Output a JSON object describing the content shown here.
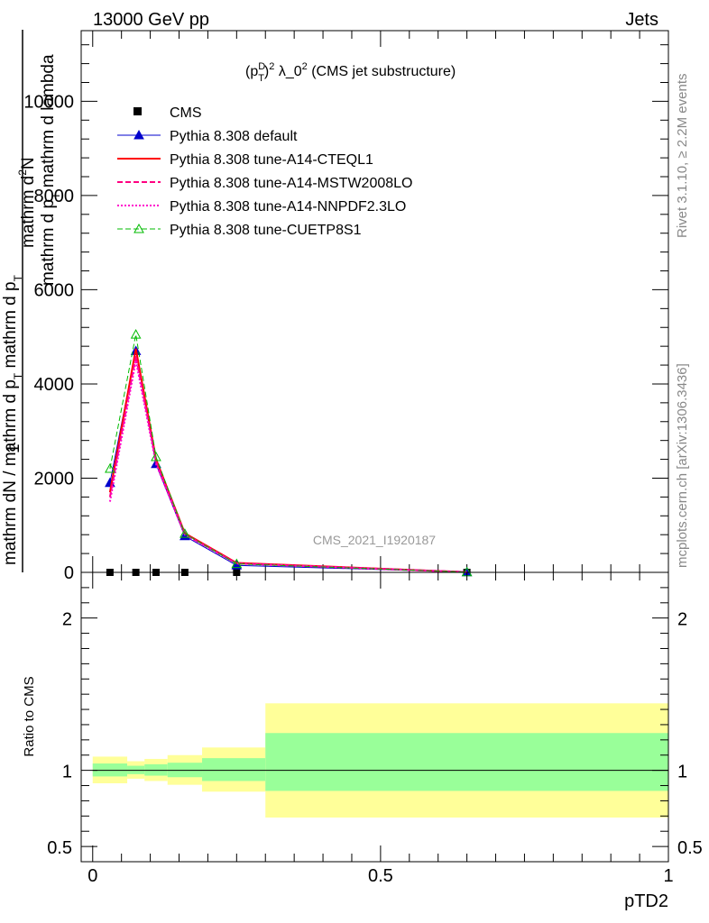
{
  "header": {
    "left": "13000 GeV pp",
    "right": "Jets"
  },
  "side_labels": {
    "rivet": "Rivet 3.1.10, ≥ 2.2M events",
    "mcplots": "mcplots.cern.ch [arXiv:1306.3436]"
  },
  "watermark": "CMS_2021_I1920187",
  "chart_data": [
    {
      "type": "line",
      "title_main": "(p",
      "title_sup_D": "D",
      "title_sub_T": "T",
      "title_rest": ")",
      "title_sup_2": "2",
      "title_lambda": " λ_0",
      "title_sup_2b": "2",
      "title_end": " (CMS jet substructure)",
      "ylabel_num": "1",
      "ylabel_num_line1": "mathrm d",
      "ylabel_num_sup": "2",
      "ylabel_num_line1b": "N",
      "ylabel_num_line2": "mathrm d p",
      "ylabel_num_line2_sub": "T",
      "ylabel_num_line2b": " mathrm d lambda",
      "ylabel_den": "mathrm dN / mathrm d p",
      "ylabel_den_sub": "T",
      "ylabel_den_b": " mathrm d p",
      "ylabel_den_sub2": "T",
      "ylim": [
        0,
        11500
      ],
      "yticks": [
        0,
        2000,
        4000,
        6000,
        8000,
        10000
      ],
      "ytick_labels": [
        "0",
        "2000",
        "4000",
        "6000",
        "8000",
        "10000"
      ],
      "xlim": [
        -0.02,
        1.0
      ],
      "legend_position": "top-left",
      "series": [
        {
          "name": "CMS",
          "color": "#000000",
          "style": "data-points",
          "x": [
            0.03,
            0.075,
            0.11,
            0.16,
            0.25,
            0.65
          ],
          "y": [
            0,
            0,
            0,
            0,
            0,
            0
          ]
        },
        {
          "name": "Pythia 8.308 default",
          "color": "#0000cc",
          "style": "solid-triangle",
          "x": [
            0.03,
            0.075,
            0.11,
            0.16,
            0.25,
            0.65
          ],
          "y": [
            1900,
            4700,
            2300,
            770,
            150,
            5
          ]
        },
        {
          "name": "Pythia 8.308 tune-A14-CTEQL1",
          "color": "#ff0000",
          "style": "solid",
          "x": [
            0.03,
            0.075,
            0.11,
            0.16,
            0.25,
            0.65
          ],
          "y": [
            1700,
            4750,
            2400,
            830,
            200,
            5
          ]
        },
        {
          "name": "Pythia 8.308 tune-A14-MSTW2008LO",
          "color": "#ff0080",
          "style": "dashed",
          "x": [
            0.03,
            0.075,
            0.11,
            0.16,
            0.25,
            0.65
          ],
          "y": [
            1600,
            4600,
            2350,
            810,
            190,
            5
          ]
        },
        {
          "name": "Pythia 8.308 tune-A14-NNPDF2.3LO",
          "color": "#ff00cc",
          "style": "dotted",
          "x": [
            0.03,
            0.075,
            0.11,
            0.16,
            0.25,
            0.65
          ],
          "y": [
            1500,
            4500,
            2300,
            800,
            185,
            5
          ]
        },
        {
          "name": "Pythia 8.308 tune-CUETP8S1",
          "color": "#00bb00",
          "style": "dashed-open-triangle",
          "x": [
            0.03,
            0.075,
            0.11,
            0.16,
            0.25,
            0.65
          ],
          "y": [
            2200,
            5050,
            2450,
            820,
            180,
            5
          ]
        }
      ]
    },
    {
      "type": "area",
      "ylabel": "Ratio to CMS",
      "xlabel": "pTD2",
      "xlim": [
        -0.02,
        1.0
      ],
      "xticks": [
        0,
        0.5,
        1
      ],
      "xtick_labels": [
        "0",
        "0.5",
        "1"
      ],
      "ylim": [
        0.4,
        2.3
      ],
      "yticks_major": [
        0.5,
        1,
        2
      ],
      "ytick_labels": [
        "0.5",
        "1",
        "2"
      ],
      "bins": [
        {
          "lo": 0.0,
          "hi": 0.06,
          "inner": [
            0.96,
            1.045
          ],
          "outer": [
            0.915,
            1.09
          ]
        },
        {
          "lo": 0.06,
          "hi": 0.09,
          "inner": [
            0.975,
            1.03
          ],
          "outer": [
            0.945,
            1.06
          ]
        },
        {
          "lo": 0.09,
          "hi": 0.13,
          "inner": [
            0.965,
            1.04
          ],
          "outer": [
            0.93,
            1.075
          ]
        },
        {
          "lo": 0.13,
          "hi": 0.19,
          "inner": [
            0.955,
            1.05
          ],
          "outer": [
            0.905,
            1.1
          ]
        },
        {
          "lo": 0.19,
          "hi": 0.3,
          "inner": [
            0.93,
            1.08
          ],
          "outer": [
            0.86,
            1.15
          ]
        },
        {
          "lo": 0.3,
          "hi": 1.0,
          "inner": [
            0.865,
            1.245
          ],
          "outer": [
            0.69,
            1.44
          ]
        }
      ],
      "inner_color": "#99ff99",
      "outer_color": "#ffff99"
    }
  ]
}
